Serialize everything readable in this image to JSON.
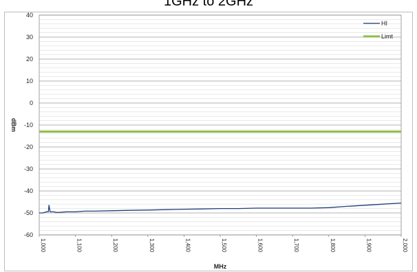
{
  "title": "1GHz to 2GHz",
  "chart_data": {
    "type": "line",
    "xlabel": "MHz",
    "ylabel": "dBm",
    "xlim": [
      1000,
      2000
    ],
    "ylim": [
      -60,
      40
    ],
    "x_ticks": [
      "1,000",
      "1,100",
      "1,200",
      "1,300",
      "1,400",
      "1,500",
      "1,600",
      "1,700",
      "1,800",
      "1,900",
      "2,000"
    ],
    "y_ticks": [
      "40",
      "30",
      "20",
      "10",
      "0",
      "-10",
      "-20",
      "-30",
      "-40",
      "-50",
      "-60"
    ],
    "grid": true,
    "legend_position": "top-right",
    "series": [
      {
        "name": "HI",
        "color": "#1f3d7a",
        "x": [
          1000,
          1010,
          1020,
          1025,
          1027,
          1030,
          1040,
          1050,
          1075,
          1100,
          1125,
          1150,
          1200,
          1250,
          1300,
          1350,
          1400,
          1450,
          1500,
          1550,
          1600,
          1650,
          1700,
          1750,
          1800,
          1850,
          1900,
          1950,
          2000
        ],
        "values": [
          -50,
          -50,
          -49.5,
          -49.5,
          -46.5,
          -49.5,
          -49.5,
          -49.8,
          -49.5,
          -49.5,
          -49.2,
          -49.2,
          -49,
          -48.8,
          -48.7,
          -48.5,
          -48.3,
          -48.2,
          -48,
          -48,
          -47.8,
          -47.8,
          -47.8,
          -47.8,
          -47.6,
          -47,
          -46.5,
          -46,
          -45.5
        ]
      },
      {
        "name": "Limt",
        "color": "#8fbc45",
        "x": [
          1000,
          2000
        ],
        "values": [
          -13,
          -13
        ]
      }
    ]
  }
}
